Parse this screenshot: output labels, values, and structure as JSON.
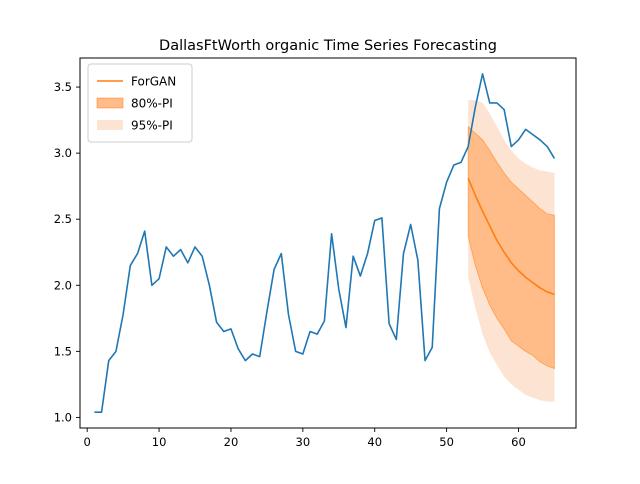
{
  "chart_data": {
    "type": "line",
    "title": "DallasFtWorth organic Time Series Forecasting",
    "xlabel": "",
    "ylabel": "",
    "xlim": [
      -1,
      68
    ],
    "ylim": [
      0.92,
      3.72
    ],
    "xticks": [
      0,
      10,
      20,
      30,
      40,
      50,
      60
    ],
    "yticks": [
      1.0,
      1.5,
      2.0,
      2.5,
      3.0,
      3.5
    ],
    "legend_position": "top-left",
    "grid": false,
    "colors": {
      "actual": "#1f77b4",
      "forecast": "#ff7f0e",
      "pi80": "#ffbb88",
      "pi95": "#fde3d2"
    },
    "legend": [
      {
        "key": "forecast",
        "label": "ForGAN",
        "kind": "line"
      },
      {
        "key": "pi80",
        "label": "80%-PI",
        "kind": "patch"
      },
      {
        "key": "pi95",
        "label": "95%-PI",
        "kind": "patch"
      }
    ],
    "actual": {
      "x": [
        1,
        2,
        3,
        4,
        5,
        6,
        7,
        8,
        9,
        10,
        11,
        12,
        13,
        14,
        15,
        16,
        17,
        18,
        19,
        20,
        21,
        22,
        23,
        24,
        25,
        26,
        27,
        28,
        29,
        30,
        31,
        32,
        33,
        34,
        35,
        36,
        37,
        38,
        39,
        40,
        41,
        42,
        43,
        44,
        45,
        46,
        47,
        48,
        49,
        50,
        51,
        52,
        53,
        54,
        55,
        56,
        57,
        58,
        59,
        60,
        61,
        62,
        63,
        64,
        65
      ],
      "y": [
        1.04,
        1.04,
        1.43,
        1.5,
        1.78,
        2.15,
        2.24,
        2.41,
        2.0,
        2.05,
        2.29,
        2.22,
        2.27,
        2.17,
        2.29,
        2.22,
        2.0,
        1.72,
        1.65,
        1.67,
        1.52,
        1.43,
        1.48,
        1.46,
        1.8,
        2.12,
        2.24,
        1.78,
        1.5,
        1.48,
        1.65,
        1.63,
        1.73,
        2.39,
        1.97,
        1.68,
        2.22,
        2.07,
        2.24,
        2.49,
        2.51,
        1.71,
        1.59,
        2.24,
        2.46,
        2.19,
        1.43,
        1.53,
        2.58,
        2.78,
        2.91,
        2.93,
        3.05,
        3.35,
        3.6,
        3.38,
        3.38,
        3.33,
        3.05,
        3.1,
        3.18,
        3.14,
        3.1,
        3.05,
        2.96
      ]
    },
    "forecast": {
      "x": [
        53,
        54,
        55,
        56,
        57,
        58,
        59,
        60,
        61,
        62,
        63,
        64,
        65
      ],
      "y": [
        2.81,
        2.68,
        2.56,
        2.45,
        2.34,
        2.25,
        2.17,
        2.11,
        2.06,
        2.02,
        1.98,
        1.95,
        1.93
      ],
      "pi80_upper": [
        3.2,
        3.15,
        3.1,
        3.02,
        2.93,
        2.85,
        2.78,
        2.73,
        2.68,
        2.63,
        2.58,
        2.54,
        2.53
      ],
      "pi80_lower": [
        2.37,
        2.15,
        1.98,
        1.85,
        1.75,
        1.67,
        1.58,
        1.54,
        1.5,
        1.47,
        1.42,
        1.39,
        1.37
      ],
      "pi95_upper": [
        3.4,
        3.4,
        3.38,
        3.3,
        3.2,
        3.1,
        3.02,
        2.96,
        2.92,
        2.89,
        2.87,
        2.86,
        2.85
      ],
      "pi95_lower": [
        2.06,
        1.83,
        1.63,
        1.49,
        1.4,
        1.31,
        1.25,
        1.21,
        1.17,
        1.15,
        1.13,
        1.12,
        1.12
      ]
    }
  }
}
